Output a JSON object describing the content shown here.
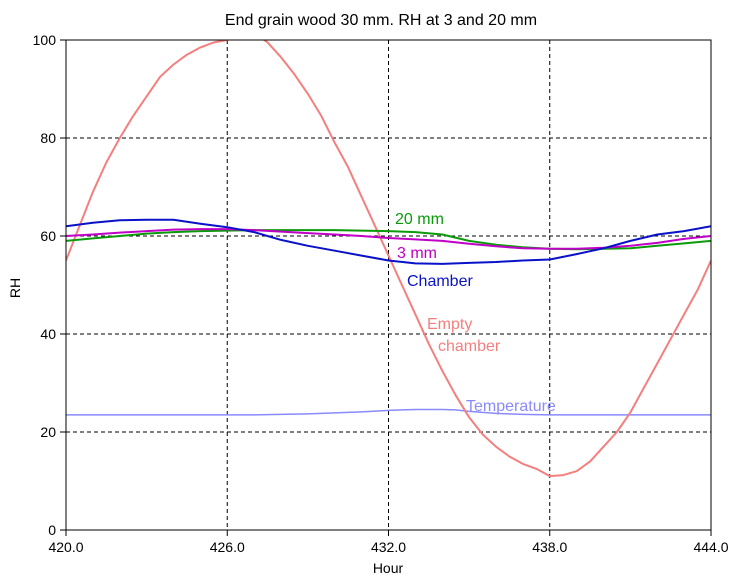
{
  "colors": {
    "empty_chamber": "#f47f7f",
    "chamber": "#0a12c8",
    "mm3": "#c000c8",
    "mm20": "#0a9a0a",
    "temperature": "#8a8aff"
  },
  "chart_data": {
    "type": "line",
    "title": "End grain wood 30 mm. RH at 3 and 20 mm",
    "xlabel": "Hour",
    "ylabel": "RH",
    "xlim": [
      420,
      444
    ],
    "ylim": [
      0,
      100
    ],
    "grid": true,
    "x_ticks": [
      420,
      426,
      432,
      438,
      444
    ],
    "x_tick_labels": [
      "420.0",
      "426.0",
      "432.0",
      "438.0",
      "444.0"
    ],
    "y_ticks": [
      0,
      20,
      40,
      60,
      80,
      100
    ],
    "y_tick_labels": [
      "0",
      "20",
      "40",
      "60",
      "80",
      "100"
    ],
    "series": [
      {
        "name": "Empty chamber",
        "label_lines": [
          "Empty",
          "chamber"
        ],
        "color_key": "empty_chamber",
        "x": [
          420.0,
          420.5,
          421.0,
          421.5,
          422.0,
          422.5,
          423.0,
          423.5,
          424.0,
          424.5,
          425.0,
          425.5,
          426.0,
          426.5,
          427.0,
          427.5,
          428.0,
          428.5,
          429.0,
          429.5,
          430.0,
          430.5,
          431.0,
          431.5,
          432.0,
          432.5,
          433.0,
          433.5,
          434.0,
          434.5,
          435.0,
          435.5,
          436.0,
          436.5,
          437.0,
          437.5,
          438.0,
          438.5,
          439.0,
          439.5,
          440.0,
          440.5,
          441.0,
          441.5,
          442.0,
          442.5,
          443.0,
          443.5,
          444.0
        ],
        "y": [
          55,
          62,
          69,
          75,
          80,
          84.5,
          88.5,
          92.5,
          95,
          97,
          98.5,
          99.5,
          100,
          101,
          101.5,
          99.5,
          96.5,
          93,
          89,
          84.5,
          79,
          74,
          68,
          62,
          56,
          50,
          44,
          38,
          32.5,
          27.5,
          23,
          19.5,
          17,
          15,
          13.5,
          12.5,
          11,
          11.2,
          12,
          14,
          17,
          20,
          24,
          29,
          34,
          39,
          44,
          49,
          55
        ]
      },
      {
        "name": "Chamber",
        "color_key": "chamber",
        "x": [
          420,
          421,
          422,
          423,
          424,
          425,
          426,
          427,
          428,
          429,
          430,
          431,
          432,
          433,
          434,
          435,
          436,
          437,
          438,
          439,
          440,
          441,
          442,
          443,
          444
        ],
        "y": [
          62,
          62.7,
          63.2,
          63.3,
          63.3,
          62.5,
          61.8,
          60.8,
          59.2,
          58,
          57,
          56,
          55,
          54.4,
          54.3,
          54.5,
          54.7,
          55,
          55.2,
          56.3,
          57.5,
          59,
          60.3,
          61,
          62
        ]
      },
      {
        "name": "3 mm",
        "color_key": "mm3",
        "x": [
          420,
          421,
          422,
          423,
          424,
          425,
          426,
          427,
          428,
          429,
          430,
          431,
          432,
          433,
          434,
          435,
          436,
          437,
          438,
          439,
          440,
          441,
          442,
          443,
          444
        ],
        "y": [
          60,
          60.3,
          60.7,
          61,
          61.3,
          61.4,
          61.4,
          61.2,
          60.9,
          60.6,
          60.3,
          60,
          59.6,
          59.3,
          59,
          58.4,
          57.9,
          57.5,
          57.4,
          57.4,
          57.6,
          58,
          58.6,
          59.4,
          60
        ]
      },
      {
        "name": "20 mm",
        "color_key": "mm20",
        "x": [
          420,
          421,
          422,
          423,
          424,
          425,
          426,
          427,
          428,
          429,
          430,
          431,
          432,
          433,
          434,
          435,
          436,
          437,
          438,
          439,
          440,
          441,
          442,
          443,
          444
        ],
        "y": [
          59,
          59.5,
          60,
          60.5,
          60.8,
          61,
          61.1,
          61.2,
          61.2,
          61.2,
          61.2,
          61.1,
          61,
          60.8,
          60.3,
          59,
          58.2,
          57.7,
          57.4,
          57.3,
          57.4,
          57.5,
          58,
          58.5,
          59
        ]
      },
      {
        "name": "Temperature",
        "color_key": "temperature",
        "x": [
          420,
          421,
          422,
          423,
          424,
          425,
          426,
          427,
          428,
          429,
          430,
          431,
          432,
          432.5,
          433,
          434,
          434.5,
          435,
          436,
          437,
          438,
          439,
          440,
          441,
          442,
          443,
          444
        ],
        "y": [
          23.5,
          23.5,
          23.5,
          23.5,
          23.5,
          23.5,
          23.5,
          23.5,
          23.6,
          23.7,
          23.9,
          24.1,
          24.4,
          24.5,
          24.6,
          24.6,
          24.5,
          24.2,
          23.8,
          23.6,
          23.5,
          23.5,
          23.5,
          23.5,
          23.5,
          23.5,
          23.5
        ]
      }
    ]
  }
}
